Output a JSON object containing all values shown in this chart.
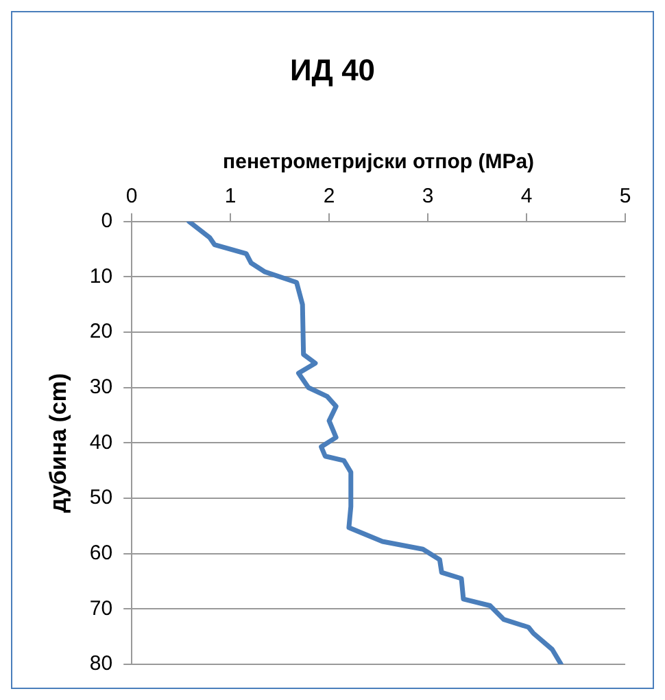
{
  "chart_data": {
    "type": "line",
    "title": "ИД 40",
    "xlabel": "пенетрометријски отпор (MPa)",
    "ylabel": "дубина (cm)",
    "xlim": [
      0,
      5
    ],
    "xticks": [
      0,
      1,
      2,
      3,
      4,
      5
    ],
    "ylim": [
      80,
      0
    ],
    "yticks": [
      0,
      10,
      20,
      30,
      40,
      50,
      60,
      70,
      80
    ],
    "grid": "y",
    "marker": "none",
    "line_style": "solid",
    "series": [
      {
        "color": "#4a7ebb",
        "x": [
          0.58,
          0.79,
          0.84,
          1.16,
          1.21,
          1.35,
          1.67,
          1.73,
          1.74,
          1.86,
          1.69,
          1.79,
          1.98,
          2.07,
          2.0,
          2.07,
          1.92,
          1.96,
          2.15,
          2.22,
          2.22,
          2.2,
          2.54,
          2.95,
          3.12,
          3.14,
          3.34,
          3.36,
          3.63,
          3.77,
          4.02,
          4.07,
          4.26,
          4.35
        ],
        "values": [
          0,
          2.9,
          4.2,
          5.8,
          7.5,
          9.1,
          11,
          15,
          24,
          25.6,
          27.4,
          30,
          31.6,
          33.4,
          36,
          39,
          40.7,
          42.4,
          43.2,
          45.3,
          51.5,
          55.3,
          57.8,
          59.2,
          61.1,
          63.4,
          64.5,
          68.2,
          69.4,
          71.9,
          73.3,
          74.4,
          77.3,
          80
        ]
      }
    ]
  }
}
